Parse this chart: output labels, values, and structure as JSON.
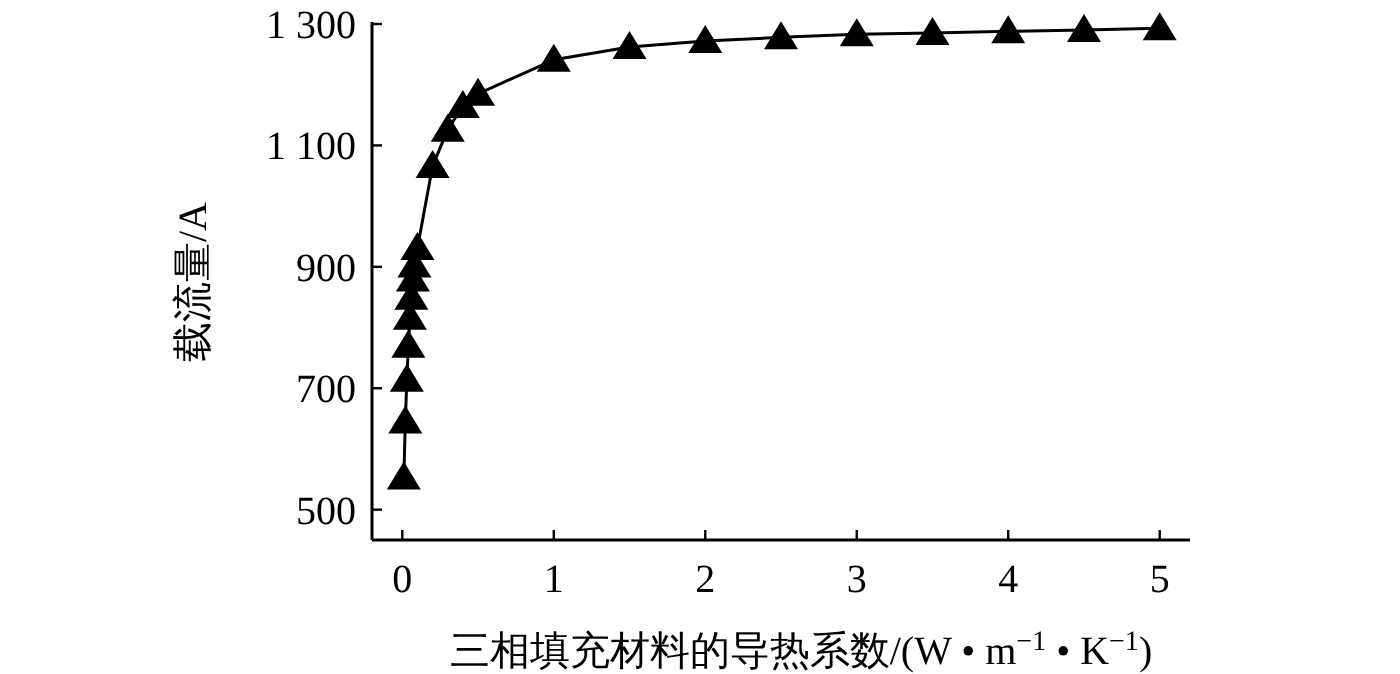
{
  "chart_data": {
    "type": "line",
    "xlabel": "三相填充材料的导热系数/(W • m$^{−1}$ • K$^{−1}$)",
    "ylabel": "载流量/A",
    "x": [
      0.01,
      0.02,
      0.03,
      0.04,
      0.05,
      0.06,
      0.07,
      0.08,
      0.1,
      0.2,
      0.3,
      0.4,
      0.5,
      1,
      1.5,
      2,
      2.5,
      3,
      3.5,
      4,
      4.5,
      5
    ],
    "series": [
      {
        "color": "#000000",
        "values": [
          553,
          645,
          714,
          770,
          816,
          849,
          879,
          902,
          931,
          1066,
          1126,
          1165,
          1185,
          1241,
          1262,
          1272,
          1278,
          1283,
          1285,
          1288,
          1290,
          1293
        ]
      }
    ],
    "xlim": [
      -0.2,
      5.2
    ],
    "xticks": [
      0,
      1,
      2,
      3,
      4,
      5
    ],
    "ylim": [
      450,
      1300
    ],
    "yticks": [
      {
        "value": 500,
        "label": "500"
      },
      {
        "value": 700,
        "label": "700"
      },
      {
        "value": 900,
        "label": "900"
      },
      {
        "value": 1100,
        "label": "1 100"
      },
      {
        "value": 1300,
        "label": "1 300"
      }
    ],
    "marker": "triangle",
    "line_style": "solid"
  }
}
